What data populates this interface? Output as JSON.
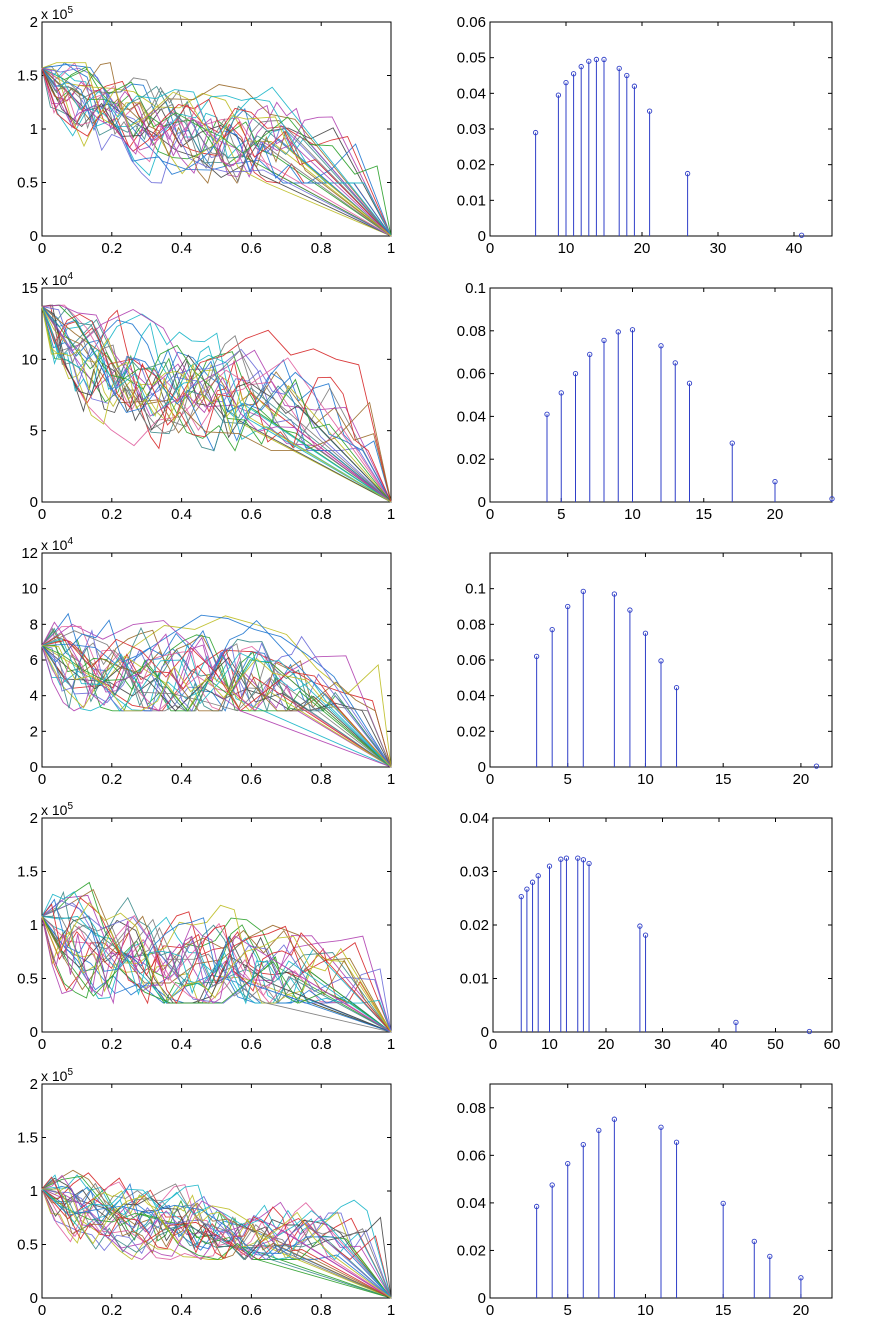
{
  "colors": {
    "stem": "#2f3fc8",
    "axes": "#000000",
    "palette": [
      "#1f77d0",
      "#2aa02a",
      "#d62728",
      "#17b5c8",
      "#b040b0",
      "#bcbd22",
      "#444444",
      "#6a6ad8",
      "#e060a0",
      "#3a8a8a",
      "#9a6a2a",
      "#7a7a7a"
    ]
  },
  "chart_data": [
    {
      "type": "line",
      "title": "",
      "xlabel": "",
      "ylabel": "",
      "exponent": "5",
      "xlim": [
        0,
        1
      ],
      "ylim": [
        0,
        2
      ],
      "xticks": [
        "0",
        "0.2",
        "0.4",
        "0.6",
        "0.8",
        "1"
      ],
      "yticks": [
        "0",
        "0.5",
        "1",
        "1.5",
        "2"
      ],
      "ytick_values": [
        0,
        0.5,
        1,
        1.5,
        2
      ],
      "num_series": 30,
      "start_value": 1.57,
      "end_value": 0,
      "typical_range": [
        0.55,
        1.62
      ],
      "grid": false
    },
    {
      "type": "stem",
      "title": "",
      "xlabel": "",
      "ylabel": "",
      "xlim": [
        0,
        45
      ],
      "ylim": [
        0,
        0.06
      ],
      "xticks": [
        "0",
        "10",
        "20",
        "30",
        "40"
      ],
      "xtick_values": [
        0,
        10,
        20,
        30,
        40
      ],
      "yticks": [
        "0",
        "0.01",
        "0.02",
        "0.03",
        "0.04",
        "0.05",
        "0.06"
      ],
      "ytick_values": [
        0,
        0.01,
        0.02,
        0.03,
        0.04,
        0.05,
        0.06
      ],
      "x": [
        6,
        9,
        10,
        11,
        12,
        13,
        14,
        15,
        17,
        18,
        19,
        21,
        26,
        41
      ],
      "values": [
        0.029,
        0.0395,
        0.043,
        0.0455,
        0.0475,
        0.049,
        0.0495,
        0.0495,
        0.047,
        0.045,
        0.042,
        0.035,
        0.0175,
        0.0002
      ],
      "grid": false
    },
    {
      "type": "line",
      "title": "",
      "xlabel": "",
      "ylabel": "",
      "exponent": "4",
      "xlim": [
        0,
        1
      ],
      "ylim": [
        0,
        15
      ],
      "xticks": [
        "0",
        "0.2",
        "0.4",
        "0.6",
        "0.8",
        "1"
      ],
      "yticks": [
        "0",
        "5",
        "10",
        "15"
      ],
      "ytick_values": [
        0,
        5,
        10,
        15
      ],
      "num_series": 30,
      "start_value": 13.7,
      "end_value": 0,
      "typical_range": [
        4,
        13.8
      ],
      "grid": false
    },
    {
      "type": "stem",
      "title": "",
      "xlabel": "",
      "ylabel": "",
      "xlim": [
        0,
        24
      ],
      "ylim": [
        0,
        0.1
      ],
      "xticks": [
        "0",
        "5",
        "10",
        "15",
        "20"
      ],
      "xtick_values": [
        0,
        5,
        10,
        15,
        20
      ],
      "yticks": [
        "0",
        "0.02",
        "0.04",
        "0.06",
        "0.08",
        "0.1"
      ],
      "ytick_values": [
        0,
        0.02,
        0.04,
        0.06,
        0.08,
        0.1
      ],
      "x": [
        4,
        5,
        6,
        7,
        8,
        9,
        10,
        12,
        13,
        14,
        17,
        20,
        24
      ],
      "values": [
        0.041,
        0.051,
        0.06,
        0.069,
        0.0755,
        0.0795,
        0.0805,
        0.073,
        0.065,
        0.0555,
        0.0275,
        0.0095,
        0.0015
      ],
      "grid": false
    },
    {
      "type": "line",
      "title": "",
      "xlabel": "",
      "ylabel": "",
      "exponent": "4",
      "xlim": [
        0,
        1
      ],
      "ylim": [
        0,
        12
      ],
      "xticks": [
        "0",
        "0.2",
        "0.4",
        "0.6",
        "0.8",
        "1"
      ],
      "yticks": [
        "0",
        "2",
        "4",
        "6",
        "8",
        "10",
        "12"
      ],
      "ytick_values": [
        0,
        2,
        4,
        6,
        8,
        10,
        12
      ],
      "num_series": 30,
      "start_value": 6.8,
      "end_value": 0,
      "typical_range": [
        3.5,
        10.8
      ],
      "grid": false
    },
    {
      "type": "stem",
      "title": "",
      "xlabel": "",
      "ylabel": "",
      "xlim": [
        0,
        22
      ],
      "ylim": [
        0,
        0.12
      ],
      "xticks": [
        "0",
        "5",
        "10",
        "15",
        "20"
      ],
      "xtick_values": [
        0,
        5,
        10,
        15,
        20
      ],
      "yticks": [
        "0",
        "0.02",
        "0.04",
        "0.06",
        "0.08",
        "0.1"
      ],
      "ytick_values": [
        0,
        0.02,
        0.04,
        0.06,
        0.08,
        0.1
      ],
      "x": [
        3,
        4,
        5,
        6,
        8,
        9,
        10,
        11,
        12,
        21
      ],
      "values": [
        0.062,
        0.077,
        0.09,
        0.0985,
        0.097,
        0.088,
        0.075,
        0.0595,
        0.0445,
        0.0005
      ],
      "grid": false
    },
    {
      "type": "line",
      "title": "",
      "xlabel": "",
      "ylabel": "",
      "exponent": "5",
      "xlim": [
        0,
        1
      ],
      "ylim": [
        0,
        2
      ],
      "xticks": [
        "0",
        "0.2",
        "0.4",
        "0.6",
        "0.8",
        "1"
      ],
      "yticks": [
        "0",
        "0.5",
        "1",
        "1.5",
        "2"
      ],
      "ytick_values": [
        0,
        0.5,
        1,
        1.5,
        2
      ],
      "num_series": 30,
      "start_value": 1.08,
      "end_value": 0,
      "typical_range": [
        0.3,
        1.55
      ],
      "grid": false
    },
    {
      "type": "stem",
      "title": "",
      "xlabel": "",
      "ylabel": "",
      "xlim": [
        0,
        60
      ],
      "ylim": [
        0,
        0.04
      ],
      "xticks": [
        "0",
        "10",
        "20",
        "30",
        "40",
        "50",
        "60"
      ],
      "xtick_values": [
        0,
        10,
        20,
        30,
        40,
        50,
        60
      ],
      "yticks": [
        "0",
        "0.01",
        "0.02",
        "0.03",
        "0.04"
      ],
      "ytick_values": [
        0,
        0.01,
        0.02,
        0.03,
        0.04
      ],
      "x": [
        5,
        6,
        7,
        8,
        10,
        12,
        13,
        15,
        16,
        17,
        26,
        27,
        43,
        56
      ],
      "values": [
        0.0253,
        0.0267,
        0.028,
        0.0292,
        0.031,
        0.0323,
        0.0325,
        0.0325,
        0.0322,
        0.0315,
        0.0198,
        0.0181,
        0.0018,
        0.0001
      ],
      "grid": false
    },
    {
      "type": "line",
      "title": "",
      "xlabel": "",
      "ylabel": "",
      "exponent": "5",
      "xlim": [
        0,
        1
      ],
      "ylim": [
        0,
        2
      ],
      "xticks": [
        "0",
        "0.2",
        "0.4",
        "0.6",
        "0.8",
        "1"
      ],
      "yticks": [
        "0",
        "0.5",
        "1",
        "1.5",
        "2"
      ],
      "ytick_values": [
        0,
        0.5,
        1,
        1.5,
        2
      ],
      "num_series": 30,
      "start_value": 1.02,
      "end_value": 0,
      "typical_range": [
        0.4,
        1.25
      ],
      "grid": false
    },
    {
      "type": "stem",
      "title": "",
      "xlabel": "",
      "ylabel": "",
      "xlim": [
        0,
        22
      ],
      "ylim": [
        0,
        0.09
      ],
      "xticks": [
        "0",
        "5",
        "10",
        "15",
        "20"
      ],
      "xtick_values": [
        0,
        5,
        10,
        15,
        20
      ],
      "yticks": [
        "0",
        "0.02",
        "0.04",
        "0.06",
        "0.08"
      ],
      "ytick_values": [
        0,
        0.02,
        0.04,
        0.06,
        0.08
      ],
      "x": [
        3,
        4,
        5,
        6,
        7,
        8,
        11,
        12,
        15,
        17,
        18,
        20
      ],
      "values": [
        0.0385,
        0.0475,
        0.0565,
        0.0645,
        0.0705,
        0.0752,
        0.0718,
        0.0655,
        0.0398,
        0.0238,
        0.0175,
        0.0085
      ],
      "grid": false
    }
  ]
}
